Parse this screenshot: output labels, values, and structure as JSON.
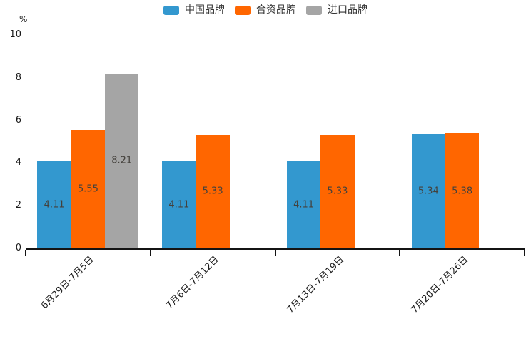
{
  "chart_data": {
    "type": "bar",
    "title": "",
    "unit_label": "%",
    "xlabel": "",
    "ylabel": "%",
    "ylim": [
      0,
      10
    ],
    "y_ticks": [
      0,
      2,
      4,
      6,
      8,
      10
    ],
    "grid": false,
    "legend_position": "top",
    "categories": [
      "6月29日-7月5日",
      "7月6日-7月12日",
      "7月13日-7月19日",
      "7月20日-7月26日"
    ],
    "series": [
      {
        "name": "中国品牌",
        "color": "#3398CF",
        "values": [
          4.11,
          4.11,
          4.11,
          5.34
        ]
      },
      {
        "name": "合资品牌",
        "color": "#FF6600",
        "values": [
          5.55,
          5.33,
          5.33,
          5.38
        ]
      },
      {
        "name": "进口品牌",
        "color": "#A5A5A5",
        "values": [
          8.21,
          null,
          null,
          null
        ]
      }
    ],
    "value_labels": {
      "position": "inside-center",
      "color": "#44413c",
      "decimals": 2
    },
    "axis_color": "#141414"
  }
}
